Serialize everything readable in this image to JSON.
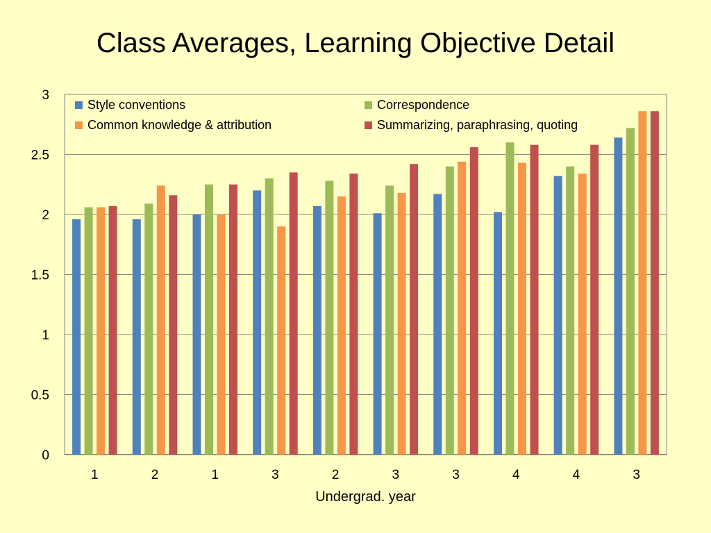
{
  "title": "Class Averages, Learning Objective Detail",
  "chart_data": {
    "type": "bar",
    "title": "Class Averages, Learning Objective Detail",
    "xlabel": "Undergrad. year",
    "ylabel": "",
    "ylim": [
      0,
      3
    ],
    "yticks": [
      "0",
      "0.5",
      "1",
      "1.5",
      "2",
      "2.5",
      "3"
    ],
    "grid": true,
    "legend_position": "top",
    "categories": [
      "1",
      "2",
      "1",
      "3",
      "2",
      "3",
      "3",
      "4",
      "4",
      "3"
    ],
    "series": [
      {
        "name": "Style conventions",
        "color": "#4f81bd",
        "values": [
          1.96,
          1.96,
          2.0,
          2.2,
          2.07,
          2.01,
          2.17,
          2.02,
          2.32,
          2.64
        ]
      },
      {
        "name": "Correspondence",
        "color": "#9bbb59",
        "values": [
          2.06,
          2.09,
          2.25,
          2.3,
          2.28,
          2.24,
          2.4,
          2.6,
          2.4,
          2.72
        ]
      },
      {
        "name": "Common knowledge & attribution",
        "color": "#f79646",
        "values": [
          2.06,
          2.24,
          2.0,
          1.9,
          2.15,
          2.18,
          2.44,
          2.43,
          2.34,
          2.86
        ]
      },
      {
        "name": "Summarizing, paraphrasing, quoting",
        "color": "#c0504d",
        "values": [
          2.07,
          2.16,
          2.25,
          2.35,
          2.34,
          2.42,
          2.56,
          2.58,
          2.58,
          2.86
        ]
      }
    ]
  }
}
